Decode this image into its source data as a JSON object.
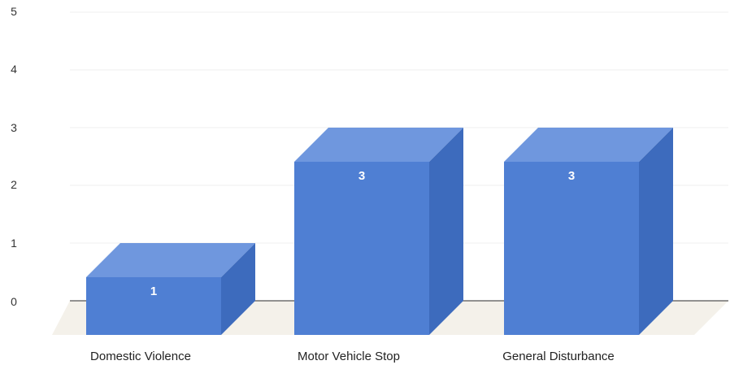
{
  "chart_data": {
    "type": "bar",
    "style": "3d",
    "categories": [
      "Domestic Violence",
      "Motor Vehicle Stop",
      "General Disturbance"
    ],
    "values": [
      1,
      3,
      3
    ],
    "data_labels": [
      "1",
      "3",
      "3"
    ],
    "y_ticks": [
      "0",
      "1",
      "2",
      "3",
      "4",
      "5"
    ],
    "ylim": [
      0,
      5
    ],
    "grid": true,
    "legend": "none",
    "colors": {
      "bar_front": "#4f7fd3",
      "bar_top": "#6f97de",
      "bar_side": "#3d6bbd",
      "baseline": "#555555",
      "grid": "#efefef",
      "floor": "#f4f1ea"
    }
  }
}
